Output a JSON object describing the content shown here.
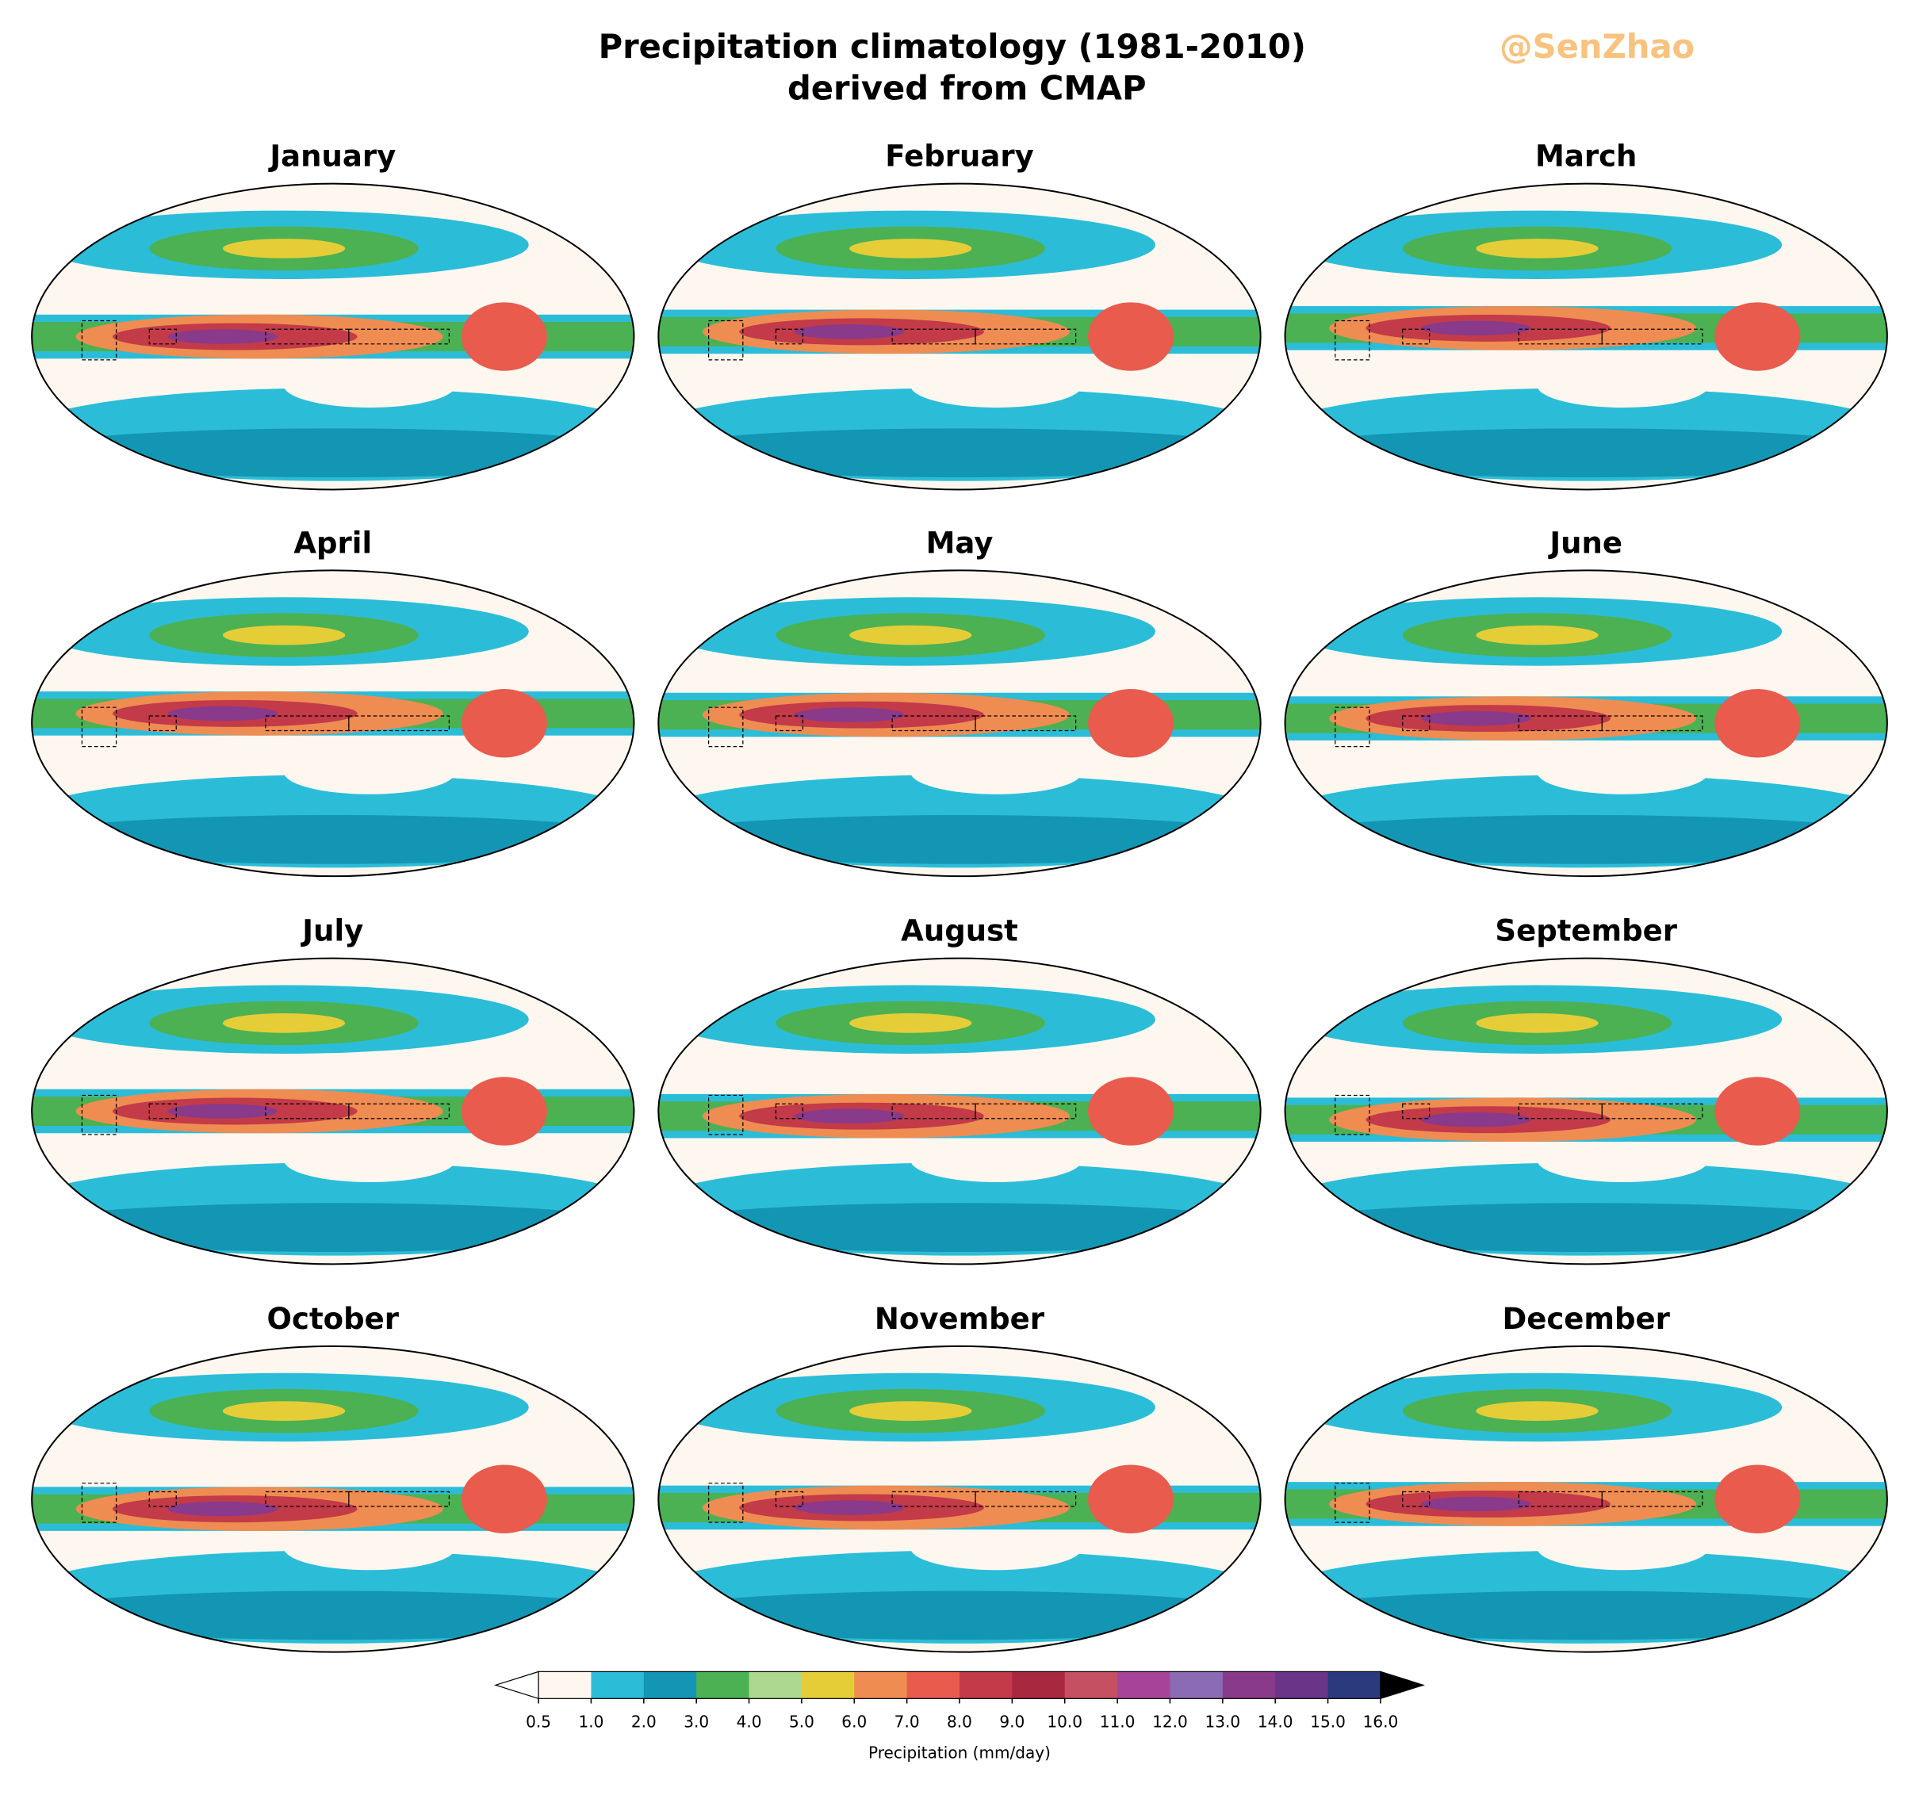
{
  "figure": {
    "title": "Precipitation climatology (1981-2010)",
    "subtitle": "derived from CMAP",
    "watermark": "@SenZhao",
    "panels": [
      "January",
      "February",
      "March",
      "April",
      "May",
      "June",
      "July",
      "August",
      "September",
      "October",
      "November",
      "December"
    ],
    "colorbar": {
      "label": "Precipitation (mm/day)",
      "ticks": [
        0.5,
        {
          "value": 1,
          "label": "1.0"
        },
        {
          "value": 2,
          "label": "2.0"
        },
        {
          "value": 3,
          "label": "3.0"
        },
        {
          "value": 4,
          "label": "4.0"
        },
        {
          "value": 5,
          "label": "5.0"
        },
        {
          "value": 6,
          "label": "6.0"
        },
        {
          "value": 7,
          "label": "7.0"
        },
        {
          "value": 8,
          "label": "8.0"
        },
        {
          "value": 9,
          "label": "9.0"
        },
        {
          "value": 10,
          "label": "10.0"
        },
        {
          "value": 11,
          "label": "11.0"
        },
        {
          "value": 12,
          "label": "12.0"
        },
        {
          "value": 13,
          "label": "13.0"
        },
        {
          "value": 14,
          "label": "14.0"
        },
        {
          "value": 15,
          "label": "15.0"
        },
        {
          "value": 16,
          "label": "16.0"
        }
      ],
      "colors": [
        "#fdf7f0",
        "#2bbdd7",
        "#1396b3",
        "#4cb153",
        "#acd88f",
        "#e5cd38",
        "#ef8c52",
        "#e85b4d",
        "#c33a48",
        "#a8283f",
        "#c45062",
        "#a7449a",
        "#8b6bb3",
        "#893a8a",
        "#6a3488",
        "#2b3a7d"
      ],
      "under_color": "#ffffff",
      "over_color": "#000000"
    }
  }
}
